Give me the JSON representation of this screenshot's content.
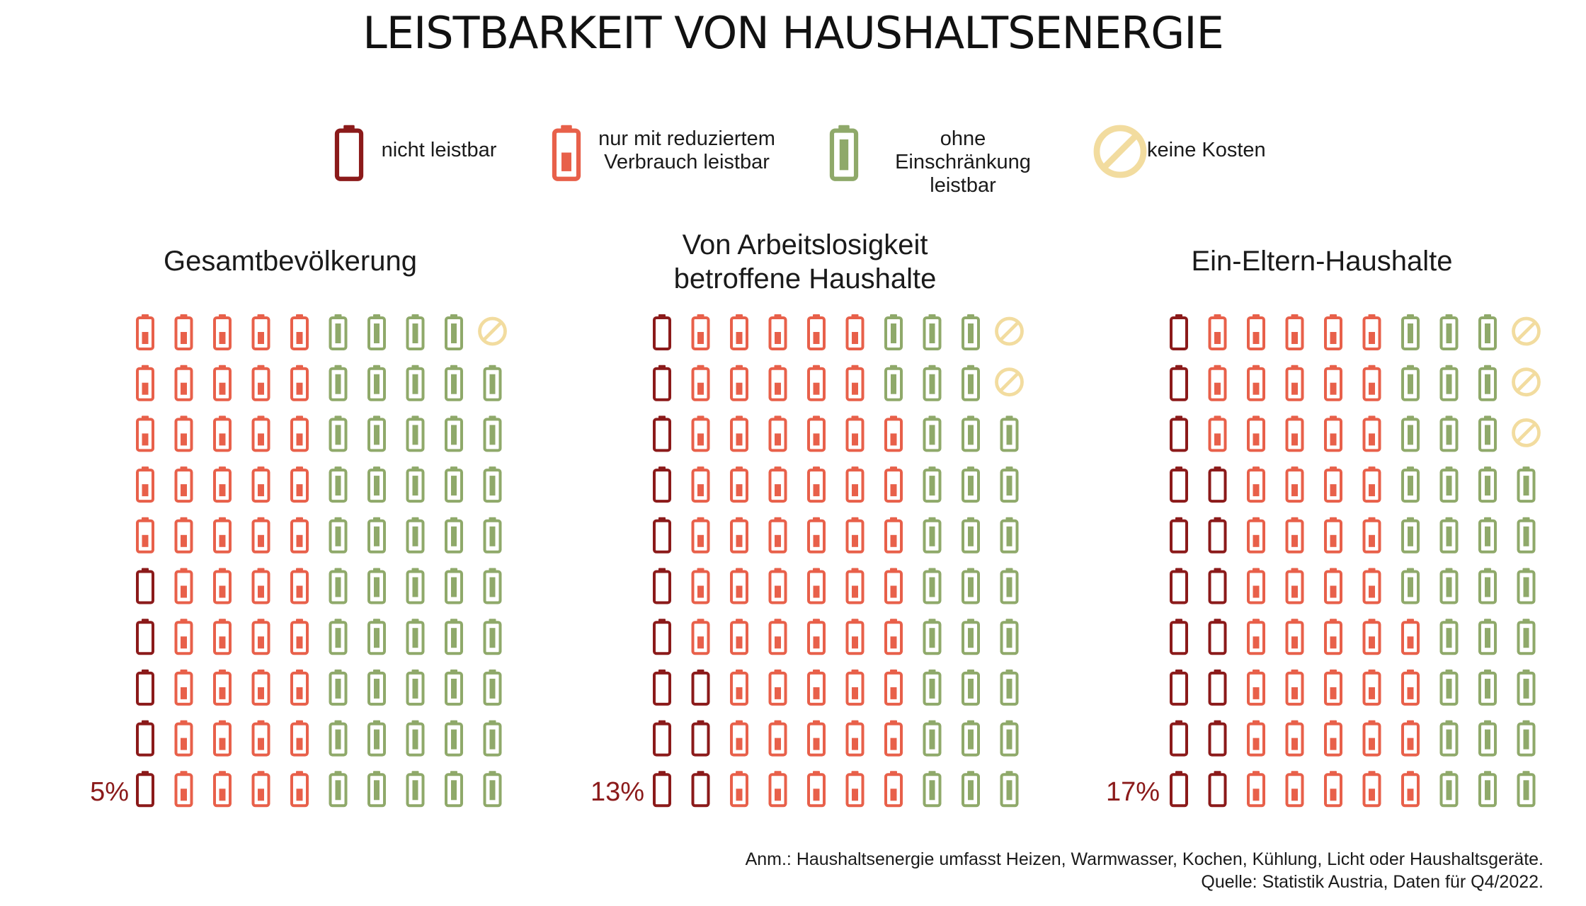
{
  "title": "LEISTBARKEIT VON HAUSHALTSENERGIE",
  "colors": {
    "nicht_leistbar": "#8b1a1a",
    "reduziert": "#e8604a",
    "ohne": "#8fa96a",
    "keine_kosten": "#f2dc9f"
  },
  "legend": [
    {
      "key": "nicht_leistbar",
      "label": "nicht leistbar",
      "icon": "battery-empty-icon"
    },
    {
      "key": "reduziert",
      "label_line1": "nur mit reduziertem",
      "label_line2": "Verbrauch leistbar",
      "icon": "battery-half-icon"
    },
    {
      "key": "ohne",
      "label_line1": "ohne Einschränkung",
      "label_line2": "leistbar",
      "icon": "battery-full-icon"
    },
    {
      "key": "keine_kosten",
      "label": "keine Kosten",
      "icon": "no-cost-icon"
    }
  ],
  "chart_data": {
    "type": "waffle",
    "title": "LEISTBARKEIT VON HAUSHALTSENERGIE",
    "units_per_panel": 100,
    "grid": "10 columns × 10 rows, filled column by column from bottom-left",
    "categories": [
      "nicht leistbar",
      "nur mit reduziertem Verbrauch leistbar",
      "ohne Einschränkung leistbar",
      "keine Kosten"
    ],
    "panels": [
      {
        "title_line1": "Gesamtbevölkerung",
        "title_line2": "",
        "label": "5%",
        "counts": {
          "nicht_leistbar": 5,
          "reduziert": 45,
          "ohne": 49,
          "keine_kosten": 1
        }
      },
      {
        "title_line1": "Von Arbeitslosigkeit",
        "title_line2": "betroffene Haushalte",
        "label": "13%",
        "counts": {
          "nicht_leistbar": 13,
          "reduziert": 55,
          "ohne": 30,
          "keine_kosten": 2
        }
      },
      {
        "title_line1": "Ein-Eltern-Haushalte",
        "title_line2": "",
        "label": "17%",
        "counts": {
          "nicht_leistbar": 17,
          "reduziert": 47,
          "ohne": 33,
          "keine_kosten": 3
        }
      }
    ]
  },
  "footnote": {
    "line1": "Anm.: Haushaltsenergie umfasst Heizen, Warmwasser, Kochen, Kühlung, Licht oder Haushaltsgeräte.",
    "line2": "Quelle: Statistik Austria, Daten für Q4/2022."
  }
}
